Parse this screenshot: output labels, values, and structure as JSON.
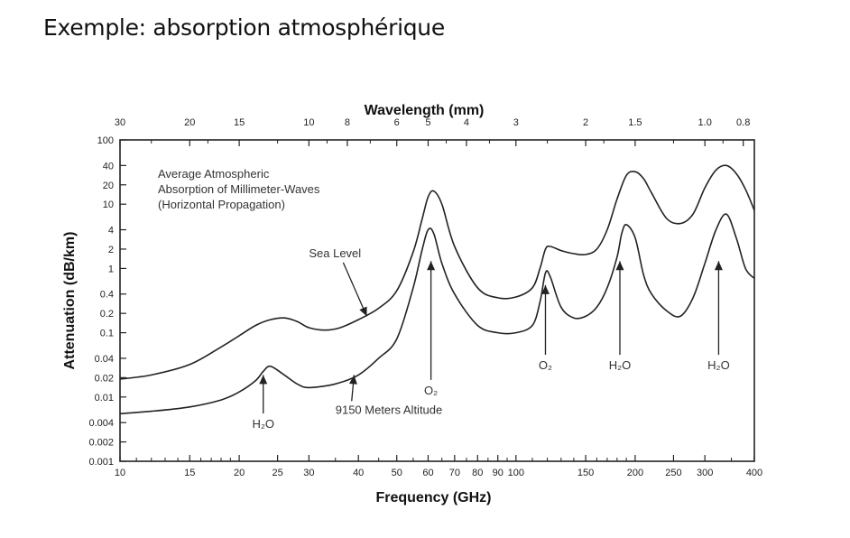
{
  "slide": {
    "title": "Exemple: absorption atmosphérique"
  },
  "chart_data": {
    "type": "line",
    "title": "",
    "xlabel": "Frequency (GHz)",
    "ylabel": "Attenuation (dB/km)",
    "top_axis_label": "Wavelength (mm)",
    "x_scale": "log",
    "y_scale": "log",
    "xlim": [
      10,
      400
    ],
    "ylim": [
      0.001,
      100
    ],
    "x_ticks": [
      {
        "v": 10,
        "label": "10"
      },
      {
        "v": 15,
        "label": "15"
      },
      {
        "v": 20,
        "label": "20"
      },
      {
        "v": 25,
        "label": "25"
      },
      {
        "v": 30,
        "label": "30"
      },
      {
        "v": 40,
        "label": "40"
      },
      {
        "v": 50,
        "label": "50"
      },
      {
        "v": 60,
        "label": "60"
      },
      {
        "v": 70,
        "label": "70"
      },
      {
        "v": 80,
        "label": "80"
      },
      {
        "v": 90,
        "label": "90"
      },
      {
        "v": 100,
        "label": "100"
      },
      {
        "v": 150,
        "label": "150"
      },
      {
        "v": 200,
        "label": "200"
      },
      {
        "v": 250,
        "label": "250"
      },
      {
        "v": 300,
        "label": "300"
      },
      {
        "v": 400,
        "label": "400"
      }
    ],
    "y_ticks": [
      {
        "v": 0.001,
        "label": "0.001"
      },
      {
        "v": 0.002,
        "label": "0.002"
      },
      {
        "v": 0.004,
        "label": "0.004"
      },
      {
        "v": 0.01,
        "label": "0.01"
      },
      {
        "v": 0.02,
        "label": "0.02"
      },
      {
        "v": 0.04,
        "label": "0.04"
      },
      {
        "v": 0.1,
        "label": "0.1"
      },
      {
        "v": 0.2,
        "label": "0.2"
      },
      {
        "v": 0.4,
        "label": "0.4"
      },
      {
        "v": 1,
        "label": "1"
      },
      {
        "v": 2,
        "label": "2"
      },
      {
        "v": 4,
        "label": "4"
      },
      {
        "v": 10,
        "label": "10"
      },
      {
        "v": 20,
        "label": "20"
      },
      {
        "v": 40,
        "label": "40"
      },
      {
        "v": 100,
        "label": "100"
      }
    ],
    "wavelength_ticks": [
      {
        "mm": 30,
        "label": "30"
      },
      {
        "mm": 20,
        "label": "20"
      },
      {
        "mm": 15,
        "label": "15"
      },
      {
        "mm": 10,
        "label": "10"
      },
      {
        "mm": 8,
        "label": "8"
      },
      {
        "mm": 6,
        "label": "6"
      },
      {
        "mm": 5,
        "label": "5"
      },
      {
        "mm": 4,
        "label": "4"
      },
      {
        "mm": 3,
        "label": "3"
      },
      {
        "mm": 2,
        "label": "2"
      },
      {
        "mm": 1.5,
        "label": "1.5"
      },
      {
        "mm": 1.0,
        "label": "1.0"
      },
      {
        "mm": 0.8,
        "label": "0.8"
      }
    ],
    "description": "Average Atmospheric\nAbsorption of Millimeter-Waves\n(Horizontal Propagation)",
    "series": [
      {
        "name": "Sea Level",
        "x": [
          10,
          12,
          15,
          18,
          20,
          22,
          24,
          26,
          28,
          30,
          33,
          36,
          40,
          45,
          50,
          55,
          58,
          60,
          62,
          65,
          70,
          80,
          90,
          100,
          110,
          115,
          118.7,
          122,
          130,
          140,
          150,
          160,
          170,
          180,
          190,
          200,
          210,
          220,
          240,
          260,
          280,
          300,
          320,
          340,
          360,
          380,
          400
        ],
        "values": [
          0.019,
          0.022,
          0.032,
          0.06,
          0.09,
          0.13,
          0.16,
          0.17,
          0.15,
          0.12,
          0.11,
          0.12,
          0.16,
          0.24,
          0.45,
          1.8,
          6,
          13,
          16,
          10,
          2.2,
          0.5,
          0.35,
          0.36,
          0.5,
          1.0,
          2.0,
          2.2,
          1.9,
          1.7,
          1.65,
          2.0,
          4,
          12,
          28,
          32,
          25,
          15,
          6,
          5,
          7,
          18,
          34,
          40,
          30,
          17,
          8
        ]
      },
      {
        "name": "9150 Meters Altitude",
        "x": [
          10,
          12,
          15,
          18,
          20,
          22,
          23,
          24,
          26,
          28,
          30,
          35,
          40,
          45,
          50,
          55,
          58,
          60,
          62,
          65,
          70,
          80,
          90,
          100,
          110,
          115,
          118.7,
          122,
          130,
          140,
          150,
          160,
          170,
          180,
          185,
          190,
          200,
          210,
          220,
          240,
          260,
          280,
          300,
          320,
          340,
          360,
          380,
          400
        ],
        "values": [
          0.0055,
          0.006,
          0.007,
          0.009,
          0.012,
          0.018,
          0.025,
          0.03,
          0.022,
          0.016,
          0.014,
          0.016,
          0.022,
          0.04,
          0.08,
          0.5,
          2,
          4,
          3.5,
          1.2,
          0.4,
          0.13,
          0.1,
          0.1,
          0.13,
          0.3,
          0.85,
          0.75,
          0.25,
          0.17,
          0.18,
          0.25,
          0.5,
          1.5,
          3.5,
          4.8,
          3,
          0.8,
          0.4,
          0.22,
          0.18,
          0.35,
          1.2,
          4,
          7,
          3,
          1,
          0.7
        ]
      }
    ],
    "annotations": [
      {
        "text": "Sea Level",
        "series": "Sea Level",
        "text_at": {
          "x": 30,
          "y": 1.5
        },
        "arrow_to": {
          "x": 42,
          "y": 0.18
        }
      },
      {
        "text": "9150 Meters Altitude",
        "series": "9150 Meters Altitude",
        "text_at": {
          "x": 35,
          "y": 0.0055
        },
        "arrow_to": {
          "x": 39,
          "y": 0.022
        }
      },
      {
        "text": "H₂O",
        "text_at": {
          "x": 23,
          "y": 0.0033
        },
        "arrow_to": {
          "x": 23,
          "y": 0.022
        }
      },
      {
        "text": "O₂",
        "text_at": {
          "x": 61,
          "y": 0.011
        },
        "arrow_to": {
          "x": 61,
          "y": 1.3
        }
      },
      {
        "text": "O₂",
        "text_at": {
          "x": 118.7,
          "y": 0.027
        },
        "arrow_to": {
          "x": 118.7,
          "y": 0.55
        }
      },
      {
        "text": "H₂O",
        "text_at": {
          "x": 183,
          "y": 0.027
        },
        "arrow_to": {
          "x": 183,
          "y": 1.3
        }
      },
      {
        "text": "H₂O",
        "text_at": {
          "x": 325,
          "y": 0.027
        },
        "arrow_to": {
          "x": 325,
          "y": 1.3
        }
      }
    ],
    "grid": false
  }
}
